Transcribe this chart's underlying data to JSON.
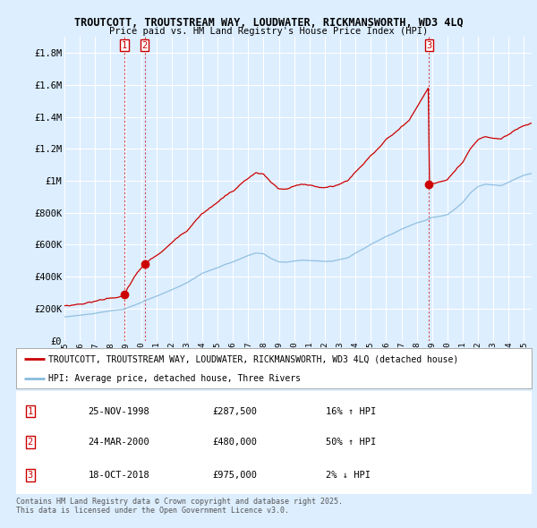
{
  "title1": "TROUTCOTT, TROUTSTREAM WAY, LOUDWATER, RICKMANSWORTH, WD3 4LQ",
  "title2": "Price paid vs. HM Land Registry's House Price Index (HPI)",
  "bg_color": "#ddeeff",
  "plot_bg_color": "#ddeeff",
  "grid_color": "#ffffff",
  "ylim": [
    0,
    1900000
  ],
  "yticks": [
    0,
    200000,
    400000,
    600000,
    800000,
    1000000,
    1200000,
    1400000,
    1600000,
    1800000
  ],
  "ytick_labels": [
    "£0",
    "£200K",
    "£400K",
    "£600K",
    "£800K",
    "£1M",
    "£1.2M",
    "£1.4M",
    "£1.6M",
    "£1.8M"
  ],
  "xlim_start": 1995.0,
  "xlim_end": 2025.5,
  "sale_dates": [
    1998.91,
    2000.24,
    2018.8
  ],
  "sale_prices": [
    287500,
    480000,
    975000
  ],
  "sale_labels": [
    "1",
    "2",
    "3"
  ],
  "vline_color": "#cc0000",
  "property_line_color": "#cc0000",
  "hpi_line_color": "#88bbdd",
  "legend_label1": "TROUTCOTT, TROUTSTREAM WAY, LOUDWATER, RICKMANSWORTH, WD3 4LQ (detached house)",
  "legend_label2": "HPI: Average price, detached house, Three Rivers",
  "table_data": [
    [
      "1",
      "25-NOV-1998",
      "£287,500",
      "16% ↑ HPI"
    ],
    [
      "2",
      "24-MAR-2000",
      "£480,000",
      "50% ↑ HPI"
    ],
    [
      "3",
      "18-OCT-2018",
      "£975,000",
      "2% ↓ HPI"
    ]
  ],
  "footer": "Contains HM Land Registry data © Crown copyright and database right 2025.\nThis data is licensed under the Open Government Licence v3.0."
}
